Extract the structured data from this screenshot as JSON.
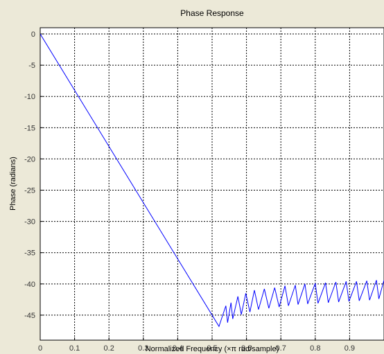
{
  "chart_data": {
    "type": "line",
    "title": "Phase Response",
    "xlabel": "Normalized Frequency (×π rad/sample)",
    "ylabel": "Phase (radians)",
    "xlim": [
      0,
      1
    ],
    "ylim": [
      -49,
      1
    ],
    "grid": true,
    "xticks": [
      0,
      0.1,
      0.2,
      0.3,
      0.4,
      0.5,
      0.6,
      0.7,
      0.8,
      0.9
    ],
    "xtick_labels": [
      "0",
      "0.1",
      "0.2",
      "0.3",
      "0.4",
      "0.5",
      "0.6",
      "0.7",
      "0.8",
      "0.9"
    ],
    "yticks": [
      0,
      -5,
      -10,
      -15,
      -20,
      -25,
      -30,
      -35,
      -40,
      -45
    ],
    "ytick_labels": [
      "0",
      "-5",
      "-10",
      "-15",
      "-20",
      "-25",
      "-30",
      "-35",
      "-40",
      "-45"
    ],
    "series": [
      {
        "color": "#0000ff",
        "x": [
          0,
          0.52,
          0.54,
          0.545,
          0.555,
          0.56,
          0.575,
          0.585,
          0.598,
          0.61,
          0.623,
          0.635,
          0.652,
          0.665,
          0.682,
          0.695,
          0.712,
          0.722,
          0.742,
          0.75,
          0.77,
          0.778,
          0.8,
          0.808,
          0.83,
          0.838,
          0.86,
          0.868,
          0.89,
          0.898,
          0.92,
          0.928,
          0.95,
          0.958,
          0.978,
          0.985,
          1.0
        ],
        "y": [
          0,
          -46.8,
          -43.5,
          -46.2,
          -43.0,
          -45.6,
          -42.0,
          -44.9,
          -41.5,
          -44.5,
          -41.0,
          -44.1,
          -40.8,
          -43.9,
          -40.6,
          -43.7,
          -40.3,
          -43.5,
          -40.2,
          -43.3,
          -40.0,
          -43.2,
          -39.9,
          -43.1,
          -39.8,
          -43.0,
          -39.7,
          -42.9,
          -39.6,
          -42.8,
          -39.6,
          -42.7,
          -39.5,
          -42.6,
          -39.4,
          -42.4,
          -39.4
        ]
      }
    ]
  }
}
